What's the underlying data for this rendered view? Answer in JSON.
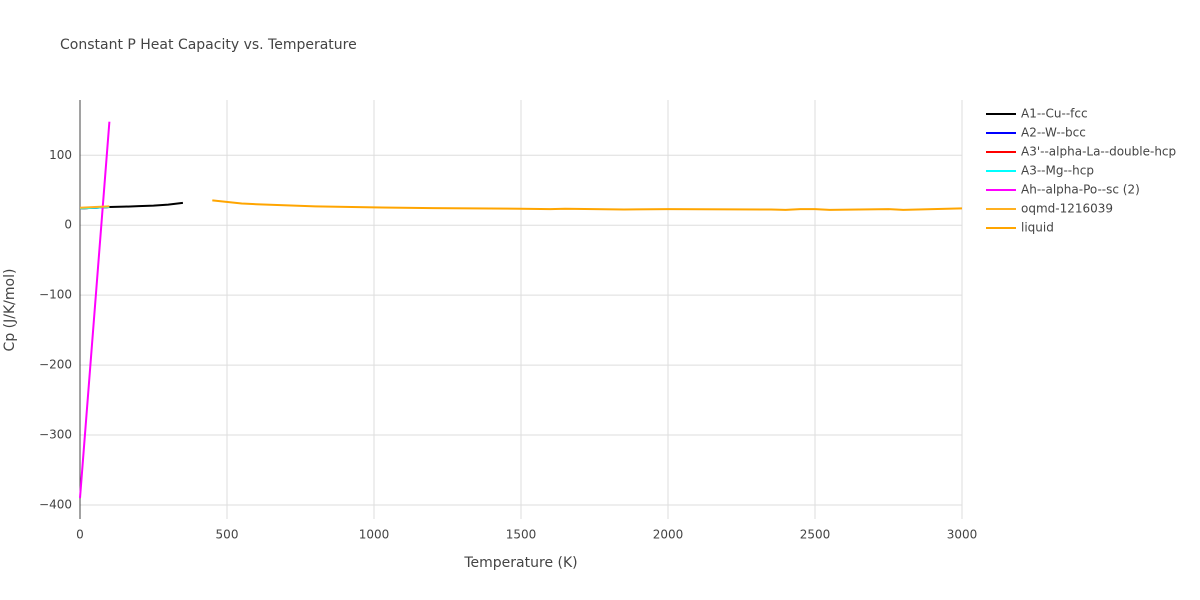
{
  "chart_data": {
    "type": "line",
    "title": "Constant P Heat Capacity vs. Temperature",
    "x_label": "Temperature (K)",
    "y_label": "Cp (J/K/mol)",
    "xlim": [
      0,
      3000
    ],
    "xticks": [
      0,
      500,
      1000,
      1500,
      2000,
      2500,
      3000
    ],
    "ylim": [
      -420,
      179
    ],
    "yticks": [
      {
        "value": -400,
        "label": "−400"
      },
      {
        "value": -300,
        "label": "−300"
      },
      {
        "value": -200,
        "label": "−200"
      },
      {
        "value": -100,
        "label": "−100"
      },
      0,
      100
    ],
    "grid": true,
    "legend": "right",
    "series": [
      {
        "name": "A1--Cu--fcc",
        "color": "#000000",
        "x": [
          0,
          50,
          100,
          150,
          200,
          250,
          300,
          350
        ],
        "values": [
          24,
          25,
          26,
          26.5,
          27.3,
          28,
          29.5,
          32
        ]
      },
      {
        "name": "A2--W--bcc",
        "color": "#0000ff",
        "x": [
          0,
          50,
          100
        ],
        "values": [
          24,
          25,
          26
        ]
      },
      {
        "name": "A3'--alpha-La--double-hcp",
        "color": "#ff0000",
        "x": [
          0,
          50,
          100
        ],
        "values": [
          24,
          25,
          26
        ]
      },
      {
        "name": "A3--Mg--hcp",
        "color": "#00ffff",
        "x": [
          0,
          50,
          100
        ],
        "values": [
          24,
          25,
          26
        ]
      },
      {
        "name": "Ah--alpha-Po--sc (2)",
        "color": "#ff00ff",
        "x": [
          0,
          100
        ],
        "values": [
          -390,
          148
        ]
      },
      {
        "name": "oqmd-1216039",
        "color": "#ffb020",
        "x": [
          0,
          50,
          100
        ],
        "values": [
          25,
          26,
          27
        ]
      },
      {
        "name": "liquid",
        "color": "#ffa500",
        "x": [
          450,
          550,
          600,
          800,
          1000,
          1200,
          1500,
          1600,
          1650,
          1850,
          2000,
          2350,
          2400,
          2450,
          2500,
          2550,
          2750,
          2800,
          3000
        ],
        "values": [
          35.5,
          31,
          30,
          27,
          25.5,
          24.5,
          23.5,
          23,
          23.5,
          22.5,
          23,
          22.5,
          22,
          23,
          23,
          22,
          23,
          22,
          24
        ]
      }
    ]
  }
}
